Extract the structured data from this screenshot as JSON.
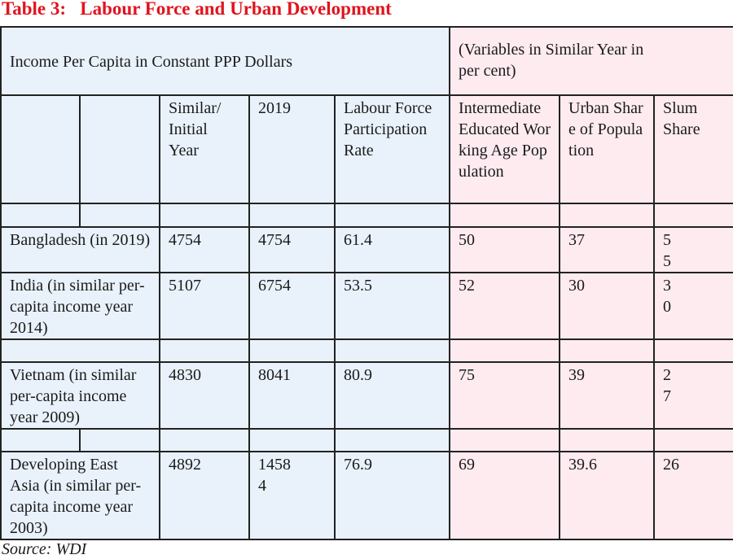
{
  "title": "Table 3:   Labour Force and Urban Development",
  "header": {
    "group_left": "Income Per Capita in Constant PPP Dollars",
    "group_right": "(Variables in Similar Year in  per cent)",
    "columns": [
      "Similar/ Initial Year",
      "2019",
      "Labour Force Participation Rate",
      "Intermediate Educated Working Age Population",
      "Urban Share of Population",
      "Slum Share"
    ]
  },
  "rows": [
    {
      "name": "Bangladesh (in 2019)",
      "similar": "4754",
      "y2019": "4754",
      "lfpr": "61.4",
      "edu": "50",
      "urban": "37",
      "slum": "55"
    },
    {
      "name": "India (in similar per-   capita income year 2014)",
      "similar": "5107",
      "y2019": "6754",
      "lfpr": "53.5",
      "edu": "52",
      "urban": "30",
      "slum": "30"
    },
    {
      "name": "Vietnam (in similar per-capita income year 2009)",
      "similar": "4830",
      "y2019": "8041",
      "lfpr": "80.9",
      "edu": "75",
      "urban": "39",
      "slum": "27"
    },
    {
      "name": "Developing East Asia (in similar per-capita income year 2003)",
      "similar": "4892",
      "y2019": "14584",
      "lfpr": "76.9",
      "edu": "69",
      "urban": "39.6",
      "slum": "26"
    }
  ],
  "source": "Source: WDI"
}
